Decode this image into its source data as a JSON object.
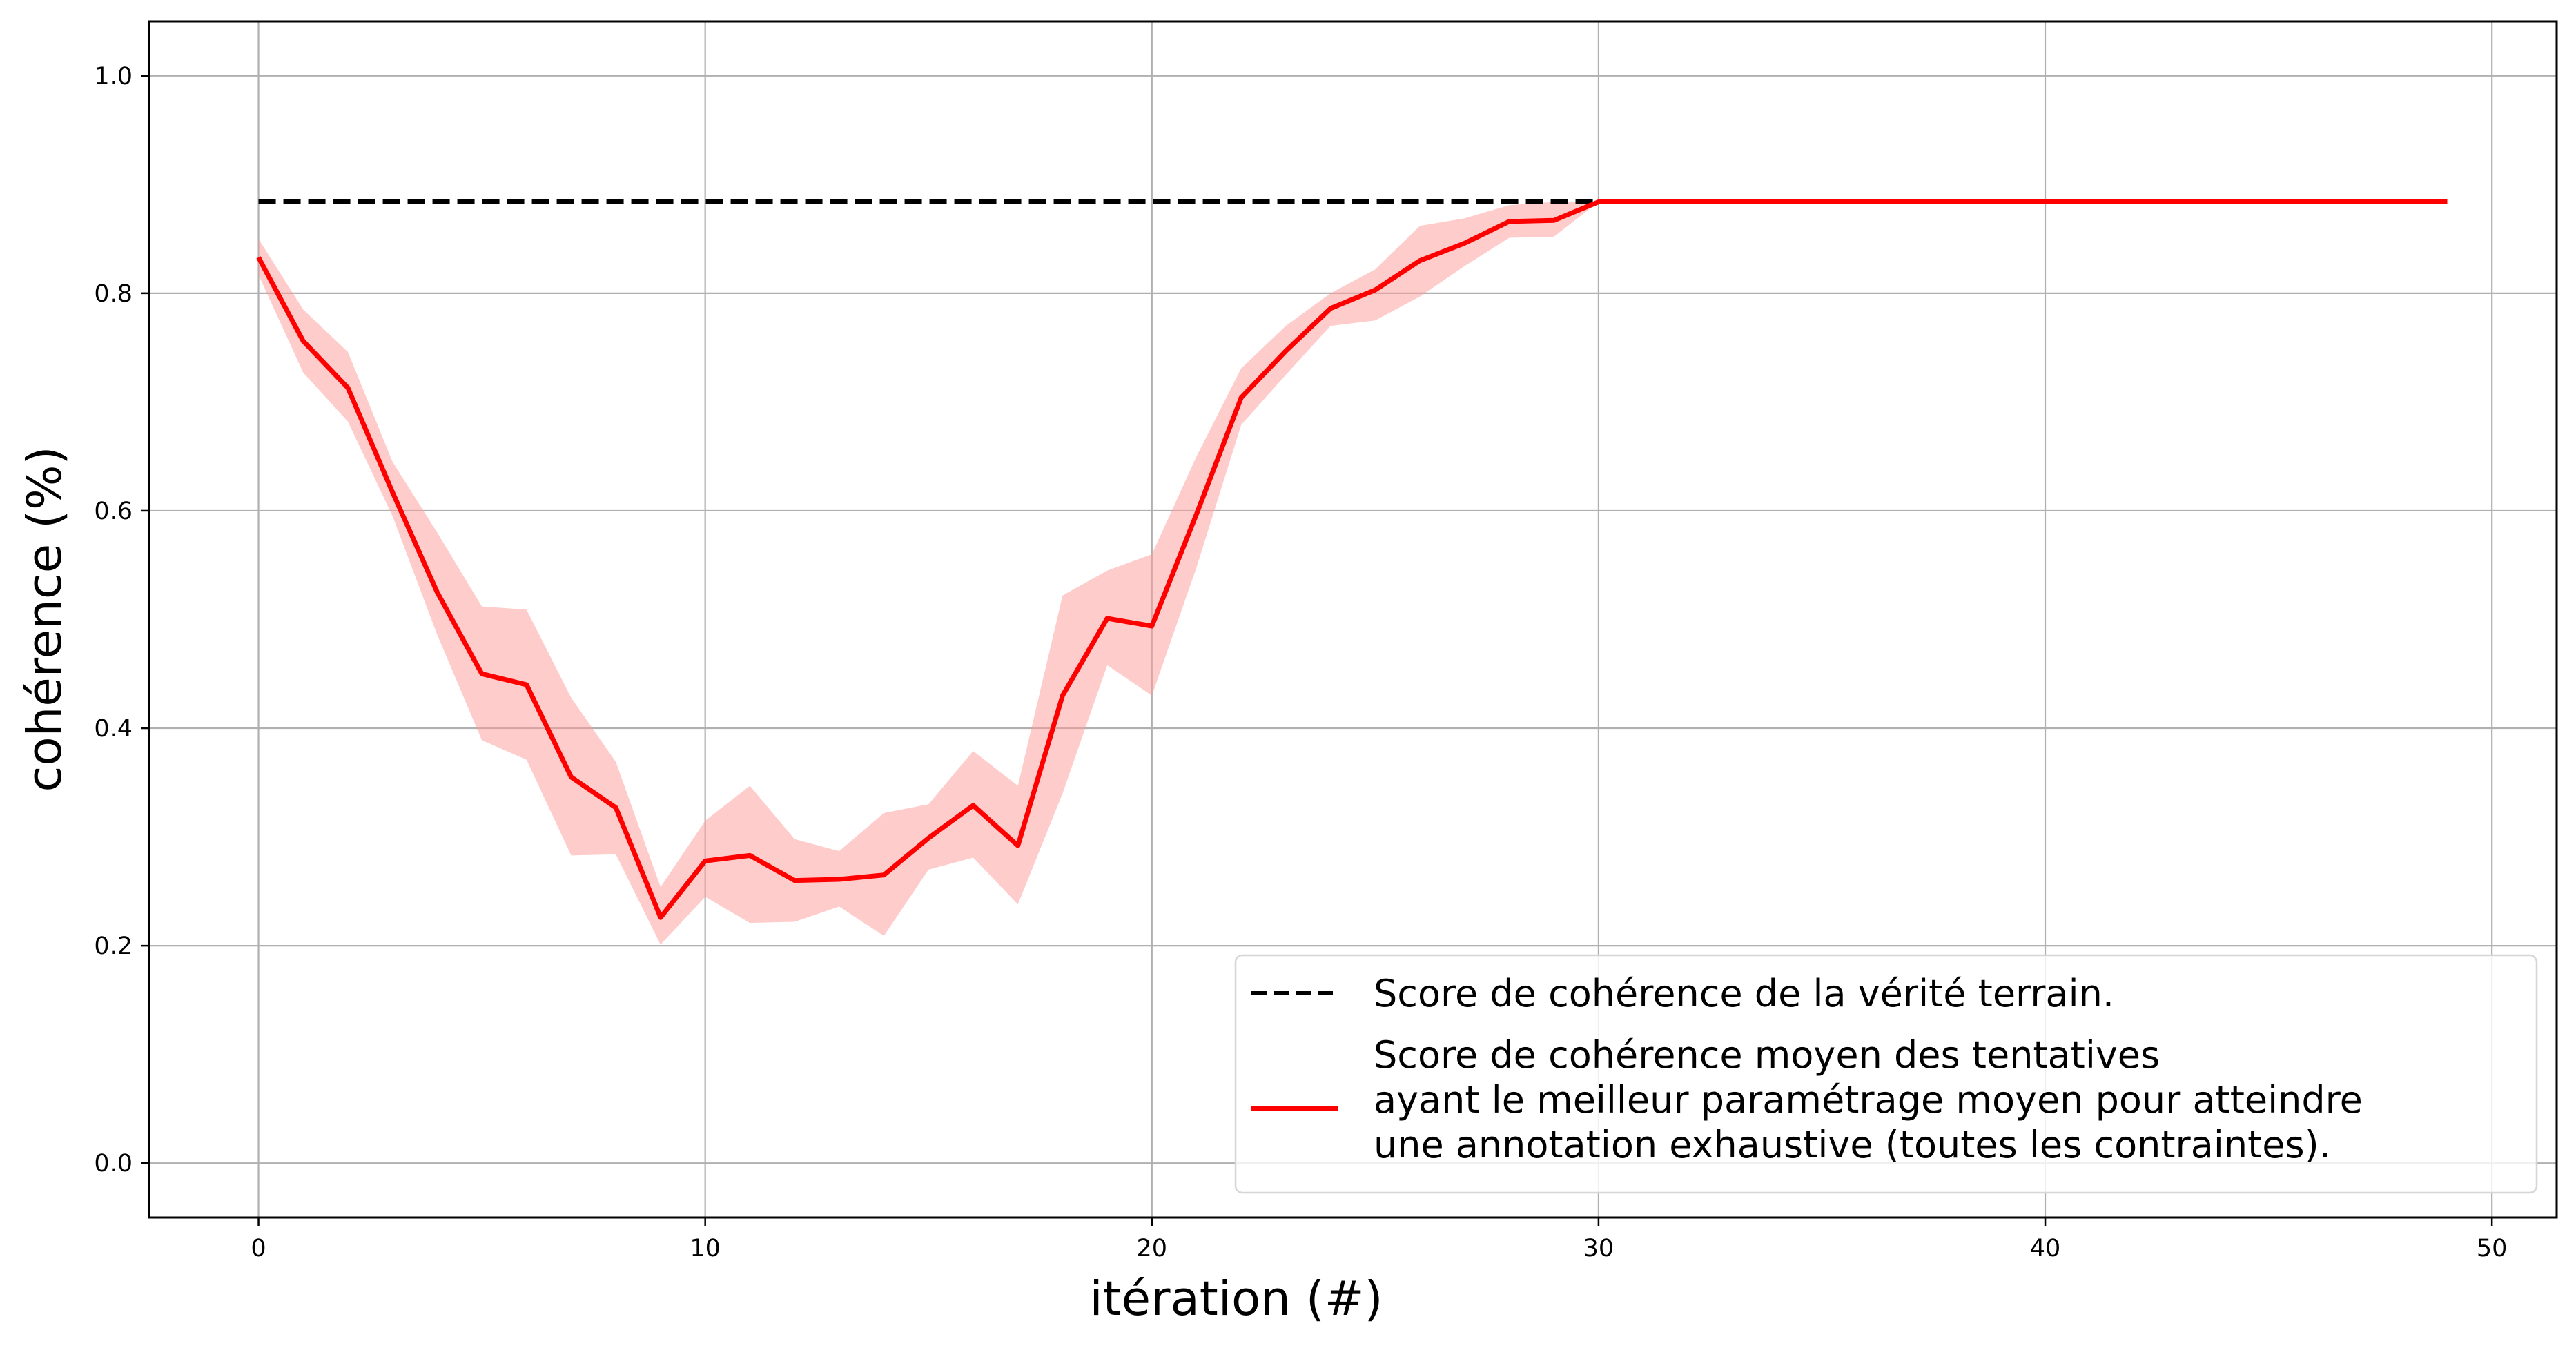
{
  "chart_data": {
    "type": "line",
    "title": "",
    "xlabel": "itération (#)",
    "ylabel": "cohérence (%)",
    "xlim": [
      -2.45,
      51.45
    ],
    "ylim": [
      -0.05,
      1.05
    ],
    "xticks": [
      "0",
      "10",
      "20",
      "30",
      "40",
      "50"
    ],
    "yticks": [
      "0.0",
      "0.2",
      "0.4",
      "0.6",
      "0.8",
      "1.0"
    ],
    "grid": true,
    "legend_position": "lower right",
    "colors": {
      "reference": "#000000",
      "mean": "#ff0000",
      "band": "#ff9999"
    },
    "series": [
      {
        "name": "Score de cohérence de la vérité terrain.",
        "style": "dashed",
        "x": [
          0,
          30
        ],
        "values": [
          0.884,
          0.884
        ]
      },
      {
        "name": "Score de cohérence moyen des tentatives\nayant le meilleur paramétrage moyen pour atteindre\nune annotation exhaustive (toutes les contraintes).",
        "style": "solid",
        "x": [
          0,
          1,
          2,
          3,
          4,
          5,
          6,
          7,
          8,
          9,
          10,
          11,
          12,
          13,
          14,
          15,
          16,
          17,
          18,
          19,
          20,
          21,
          22,
          23,
          24,
          25,
          26,
          27,
          28,
          29,
          30,
          31,
          32,
          33,
          34,
          35,
          36,
          37,
          38,
          39,
          40,
          41,
          42,
          43,
          44,
          45,
          46,
          47,
          48,
          49
        ],
        "values": [
          0.833,
          0.756,
          0.713,
          0.617,
          0.525,
          0.45,
          0.44,
          0.355,
          0.327,
          0.226,
          0.278,
          0.283,
          0.26,
          0.261,
          0.265,
          0.299,
          0.329,
          0.292,
          0.43,
          0.501,
          0.494,
          0.597,
          0.704,
          0.747,
          0.786,
          0.803,
          0.83,
          0.846,
          0.866,
          0.867,
          0.884,
          0.884,
          0.884,
          0.884,
          0.884,
          0.884,
          0.884,
          0.884,
          0.884,
          0.884,
          0.884,
          0.884,
          0.884,
          0.884,
          0.884,
          0.884,
          0.884,
          0.884,
          0.884,
          0.884
        ],
        "band_upper": [
          0.85,
          0.785,
          0.746,
          0.645,
          0.58,
          0.512,
          0.509,
          0.428,
          0.369,
          0.254,
          0.315,
          0.347,
          0.298,
          0.287,
          0.322,
          0.33,
          0.379,
          0.347,
          0.522,
          0.545,
          0.56,
          0.65,
          0.731,
          0.77,
          0.8,
          0.822,
          0.862,
          0.869,
          0.881,
          0.884,
          0.884
        ],
        "band_lower": [
          0.817,
          0.727,
          0.682,
          0.595,
          0.486,
          0.389,
          0.371,
          0.283,
          0.284,
          0.201,
          0.245,
          0.221,
          0.222,
          0.236,
          0.209,
          0.27,
          0.281,
          0.238,
          0.34,
          0.458,
          0.43,
          0.548,
          0.679,
          0.725,
          0.77,
          0.775,
          0.797,
          0.825,
          0.851,
          0.852,
          0.884
        ]
      }
    ]
  }
}
